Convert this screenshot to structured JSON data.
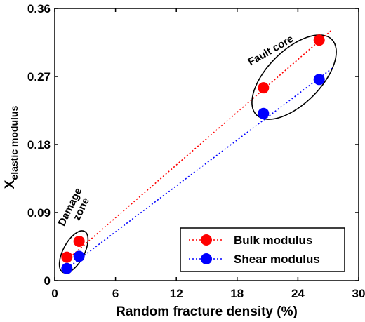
{
  "chart_data": {
    "type": "scatter",
    "title": "",
    "xlabel": "Random fracture density (%)",
    "ylabel_main": "X",
    "ylabel_sub": "elastic modulus",
    "xlim": [
      0,
      30
    ],
    "ylim": [
      0,
      0.36
    ],
    "xticks": [
      "0",
      "6",
      "12",
      "18",
      "24",
      "30"
    ],
    "yticks": [
      "0",
      "0.09",
      "0.18",
      "0.27",
      "0.36"
    ],
    "grid": false,
    "legend_position": "bottom-right",
    "series": [
      {
        "name": "Bulk modulus",
        "color": "#ff0000",
        "points": [
          {
            "x": 1.2,
            "y": 0.031
          },
          {
            "x": 2.4,
            "y": 0.052
          },
          {
            "x": 20.6,
            "y": 0.255
          },
          {
            "x": 26.1,
            "y": 0.318
          }
        ],
        "trend": [
          [
            1.0,
            0.025
          ],
          [
            27.4,
            0.332
          ]
        ]
      },
      {
        "name": "Shear modulus",
        "color": "#0000ff",
        "points": [
          {
            "x": 1.2,
            "y": 0.016
          },
          {
            "x": 2.4,
            "y": 0.032
          },
          {
            "x": 20.6,
            "y": 0.221
          },
          {
            "x": 26.1,
            "y": 0.266
          }
        ],
        "trend": [
          [
            1.0,
            0.014
          ],
          [
            27.4,
            0.281
          ]
        ]
      }
    ],
    "annotations": {
      "damage_zone_line1": "Damage",
      "damage_zone_line2": "zone",
      "fault_core": "Fault core"
    }
  }
}
